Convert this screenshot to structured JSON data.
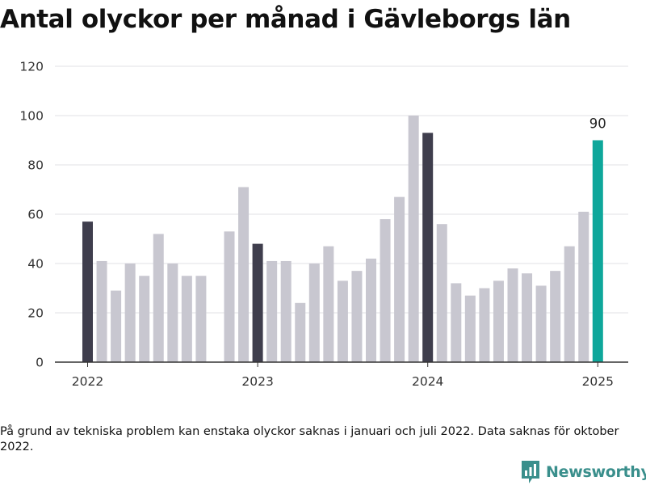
{
  "title": "Antal olyckor per månad i Gävleborgs län",
  "footnote": "På grund av tekniska problem kan enstaka olyckor saknas i januari och juli 2022. Data saknas för oktober 2022.",
  "brand": {
    "name": "Newsworthy",
    "icon": "newsworthy-logo-icon"
  },
  "colors": {
    "bar": "#c8c7d0",
    "january": "#3f3e4d",
    "highlight": "#0ea79b",
    "axis": "#333333",
    "grid": "#e1e1e6"
  },
  "chart_data": {
    "type": "bar",
    "title": "Antal olyckor per månad i Gävleborgs län",
    "xlabel": "",
    "ylabel": "",
    "ylim": [
      0,
      120
    ],
    "yticks": [
      0,
      20,
      40,
      60,
      80,
      100,
      120
    ],
    "xticks": [
      "2022",
      "2023",
      "2024",
      "2025"
    ],
    "grid": true,
    "categories": [
      "2022-01",
      "2022-02",
      "2022-03",
      "2022-04",
      "2022-05",
      "2022-06",
      "2022-07",
      "2022-08",
      "2022-09",
      "2022-10",
      "2022-11",
      "2022-12",
      "2023-01",
      "2023-02",
      "2023-03",
      "2023-04",
      "2023-05",
      "2023-06",
      "2023-07",
      "2023-08",
      "2023-09",
      "2023-10",
      "2023-11",
      "2023-12",
      "2024-01",
      "2024-02",
      "2024-03",
      "2024-04",
      "2024-05",
      "2024-06",
      "2024-07",
      "2024-08",
      "2024-09",
      "2024-10",
      "2024-11",
      "2024-12",
      "2025-01"
    ],
    "values": [
      57,
      41,
      29,
      40,
      35,
      52,
      40,
      35,
      35,
      null,
      53,
      71,
      48,
      41,
      41,
      24,
      40,
      47,
      33,
      37,
      42,
      58,
      67,
      100,
      93,
      56,
      32,
      27,
      30,
      33,
      38,
      36,
      31,
      37,
      47,
      61,
      90
    ],
    "highlight_label": "90"
  }
}
